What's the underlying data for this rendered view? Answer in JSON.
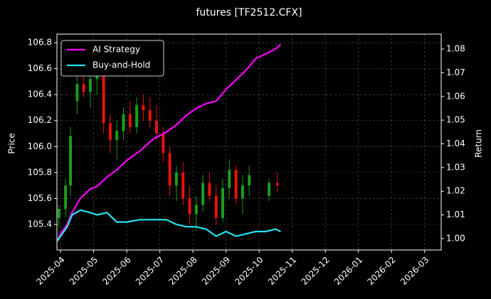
{
  "chart_data": {
    "type": "candlestick",
    "title": "futures [TF2512.CFX]",
    "y_label": "Price",
    "y2_label": "Return",
    "xlim": [
      -0.11,
      11.5
    ],
    "xticks": [
      {
        "value": 0,
        "label": "2025-04"
      },
      {
        "value": 1,
        "label": "2025-05"
      },
      {
        "value": 2,
        "label": "2025-06"
      },
      {
        "value": 3,
        "label": "2025-07"
      },
      {
        "value": 4,
        "label": "2025-08"
      },
      {
        "value": 5,
        "label": "2025-09"
      },
      {
        "value": 6,
        "label": "2025-10"
      },
      {
        "value": 7,
        "label": "2025-11"
      },
      {
        "value": 8,
        "label": "2025-12"
      },
      {
        "value": 9,
        "label": "2026-01"
      },
      {
        "value": 10,
        "label": "2026-02"
      },
      {
        "value": 11,
        "label": "2026-03"
      }
    ],
    "ylim": [
      105.203,
      106.866
    ],
    "yticks": [
      105.4,
      105.6,
      105.8,
      {
        "value": 106,
        "label": "106.0"
      },
      106.2,
      106.4,
      106.6,
      106.8
    ],
    "y2lim": [
      0.9952,
      1.0863
    ],
    "y2ticks": [
      {
        "value": 1,
        "label": "1.00"
      },
      1.01,
      1.02,
      1.03,
      1.04,
      1.05,
      1.06,
      1.07,
      1.08
    ],
    "grid": true,
    "legend": "upper left",
    "up_color": "#1a9e1a",
    "down_color": "#e8120c",
    "candles": {
      "x": [
        -0.05,
        0.15,
        0.3,
        0.5,
        0.7,
        0.9,
        1.1,
        1.3,
        1.5,
        1.7,
        1.9,
        2.1,
        2.3,
        2.5,
        2.7,
        2.9,
        3.1,
        3.3,
        3.5,
        3.7,
        3.9,
        4.1,
        4.3,
        4.5,
        4.7,
        4.9,
        5.1,
        5.3,
        5.5,
        5.7,
        6.3,
        6.55
      ],
      "open": [
        105.45,
        105.52,
        105.7,
        106.35,
        106.48,
        106.42,
        106.52,
        106.6,
        106.18,
        106.05,
        106.12,
        106.25,
        106.15,
        106.32,
        106.28,
        106.2,
        106.1,
        105.95,
        105.7,
        105.8,
        105.6,
        105.48,
        105.55,
        105.72,
        105.62,
        105.45,
        105.68,
        105.82,
        105.6,
        105.7,
        105.62,
        105.72
      ],
      "high": [
        105.55,
        105.75,
        106.15,
        106.58,
        106.65,
        106.55,
        106.7,
        106.62,
        106.25,
        106.2,
        106.3,
        106.35,
        106.38,
        106.4,
        106.38,
        106.32,
        106.15,
        106.0,
        105.85,
        105.88,
        105.7,
        105.62,
        105.78,
        105.8,
        105.7,
        105.75,
        105.9,
        105.85,
        105.78,
        105.85,
        105.75,
        105.8
      ],
      "low": [
        105.38,
        105.45,
        105.62,
        106.25,
        106.38,
        106.3,
        106.4,
        106.1,
        105.95,
        105.9,
        106.05,
        106.1,
        106.1,
        106.2,
        106.15,
        106.05,
        105.88,
        105.62,
        105.58,
        105.55,
        105.4,
        105.35,
        105.5,
        105.58,
        105.4,
        105.42,
        105.6,
        105.55,
        105.48,
        105.62,
        105.58,
        105.65
      ],
      "close": [
        105.52,
        105.7,
        106.08,
        106.48,
        106.42,
        106.52,
        106.6,
        106.18,
        106.05,
        106.12,
        106.25,
        106.15,
        106.32,
        106.28,
        106.2,
        106.1,
        105.95,
        105.7,
        105.8,
        105.6,
        105.48,
        105.55,
        105.72,
        105.62,
        105.45,
        105.68,
        105.82,
        105.6,
        105.7,
        105.78,
        105.72,
        105.7
      ]
    },
    "lines": [
      {
        "name": "AI Strategy",
        "color": "#ff00ff",
        "axis": "y2",
        "x": [
          -0.1,
          0,
          0.2,
          0.35,
          0.6,
          0.9,
          1.1,
          1.4,
          1.7,
          2.0,
          2.4,
          2.8,
          3.2,
          3.5,
          3.8,
          4.1,
          4.4,
          4.7,
          5.0,
          5.3,
          5.6,
          5.9,
          6.2,
          6.5,
          6.65
        ],
        "values": [
          0.999,
          1.002,
          1.006,
          1.011,
          1.017,
          1.021,
          1.022,
          1.026,
          1.029,
          1.033,
          1.037,
          1.042,
          1.045,
          1.048,
          1.052,
          1.055,
          1.057,
          1.058,
          1.063,
          1.067,
          1.071,
          1.076,
          1.078,
          1.08,
          1.082
        ]
      },
      {
        "name": "Buy-and-Hold",
        "color": "#22e5f0",
        "axis": "y2",
        "x": [
          -0.1,
          0,
          0.2,
          0.35,
          0.6,
          0.9,
          1.1,
          1.4,
          1.7,
          2.0,
          2.4,
          2.8,
          3.2,
          3.5,
          3.8,
          4.1,
          4.4,
          4.7,
          5.0,
          5.3,
          5.6,
          5.9,
          6.2,
          6.5,
          6.65
        ],
        "values": [
          0.999,
          1.001,
          1.005,
          1.01,
          1.012,
          1.011,
          1.01,
          1.011,
          1.007,
          1.007,
          1.008,
          1.008,
          1.008,
          1.006,
          1.005,
          1.005,
          1.004,
          1.001,
          1.003,
          1.001,
          1.002,
          1.003,
          1.003,
          1.004,
          1.003
        ]
      }
    ]
  }
}
